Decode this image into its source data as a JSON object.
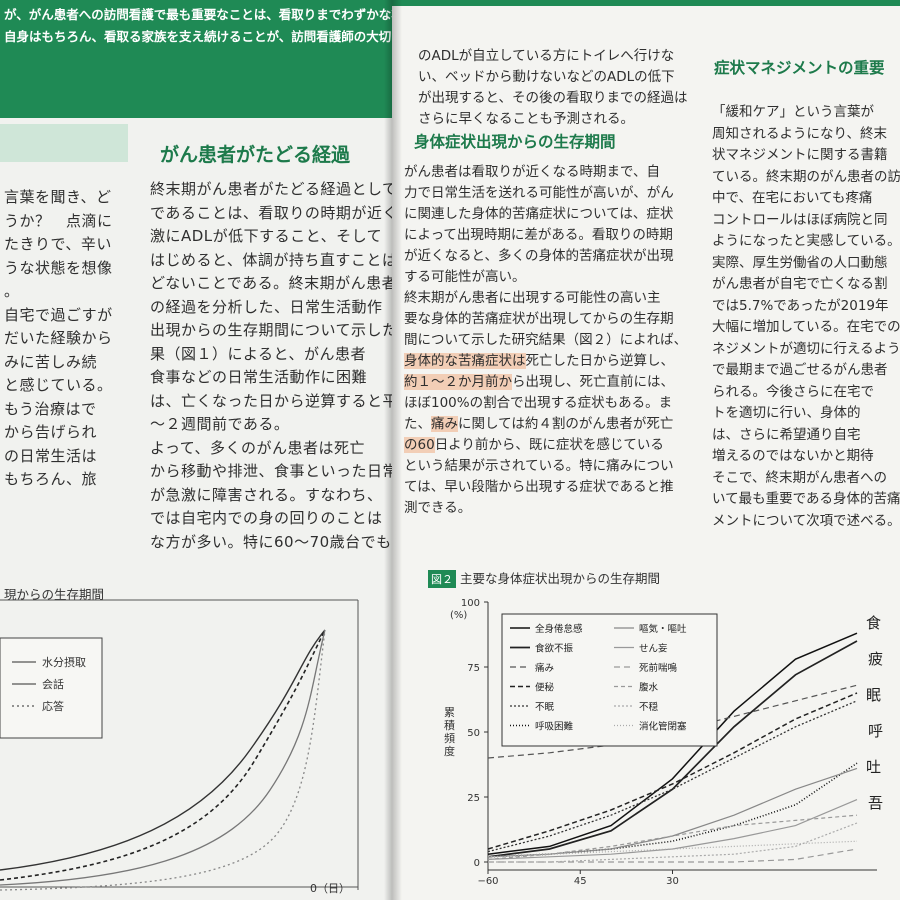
{
  "left_page": {
    "banner_lines": [
      "が、がん患者への訪問看護で最も重要なことは、看取りまでわずかな状況と予測される",
      "自身はもちろん、看取る家族を支え続けることが、訪問看護師の大切な役割",
      "",
      ""
    ],
    "section_title": "がん患者がたどる経過",
    "left_col_lines": [
      "言葉を聞き、ど",
      "うか？　点滴に",
      "たきりで、辛い",
      "うな状態を想像",
      "。",
      "自宅で過ごすが",
      "だいた経験から",
      "みに苦しみ続",
      "と感じている。",
      "もう治療はで",
      "から告げられ",
      "の日常生活は",
      "もちろん、旅"
    ],
    "right_col_lines": [
      "終末期がん患者がたどる経過として特",
      "であることは、看取りの時期が近くなる",
      "激にADLが低下すること、そして",
      "はじめると、体調が持ち直すことは",
      "どないことである。終末期がん患者",
      "の経過を分析した、日常生活動作",
      "出現からの生存期間について示した",
      "果（図１）によると、がん患者",
      "食事などの日常生活動作に困難",
      "は、亡くなった日から逆算すると平均",
      "～２週間前である。",
      "よって、多くのがん患者は死亡",
      "から移動や排泄、食事といった日常",
      "が急激に障害される。すなわち、",
      "では自宅内での身の回りのことは",
      "な方が多い。特に60～70歳台でも"
    ],
    "figure_caption": "現からの生存期間",
    "legend": [
      "水分摂取",
      "会話",
      "応答"
    ],
    "x_axis_end": "0（日）"
  },
  "right_page": {
    "intro_lines": [
      "のADLが自立している方にトイレへ行けな",
      "い、ベッドから動けないなどのADLの低下",
      "が出現すると、その後の看取りまでの経過は",
      "さらに早くなることも予測される。"
    ],
    "section_title": "身体症状出現からの生存期間",
    "body_lines": [
      "がん患者は看取りが近くなる時期まで、自",
      "力で日常生活を送れる可能性が高いが、がん",
      "に関連した身体的苦痛症状については、症状",
      "によって出現時期に差がある。看取りの時期",
      "が近くなると、多くの身体的苦痛症状が出現",
      "する可能性が高い。",
      "終末期がん患者に出現する可能性の高い主",
      "要な身体的苦痛症状が出現してからの生存期",
      "間について示した研究結果（図２）によれば、",
      "身体的な苦痛症状は死亡した日から逆算し、",
      "約１～２か月前から出現し、死亡直前には、",
      "ほぼ100%の割合で出現する症状もある。ま",
      "た、痛みに関しては約４割のがん患者が死亡",
      "の60日より前から、既に症状を感じている",
      "という結果が示されている。特に痛みについ",
      "ては、早い段階から出現する症状であると推",
      "測できる。"
    ],
    "side_title": "症状マネジメントの重要",
    "side_lines": [
      "「緩和ケア」という言葉が",
      "周知されるようになり、終末",
      "状マネジメントに関する書籍",
      "ている。終末期のがん患者の訪",
      "中で、在宅においても疼痛",
      "コントロールはほぼ病院と同",
      "ようになったと実感している。",
      "実際、厚生労働省の人口動態",
      "がん患者が自宅で亡くなる割",
      "では5.7%であったが2019年",
      "大幅に増加している。在宅での",
      "ネジメントが適切に行えるように",
      "で最期まで過ごせるがん患者",
      "られる。今後さらに在宅で",
      "トを適切に行い、身体的",
      "は、さらに希望通り自宅",
      "増えるのではないかと期待",
      "そこで、終末期がん患者への",
      "いて最も重要である身体的苦痛",
      "メントについて次項で述べる。"
    ],
    "figure_label": "図２",
    "figure_caption": "主要な身体症状出現からの生存期間",
    "y_axis_title": "累積頻度",
    "y_unit": "(%)",
    "y_ticks": [
      "100",
      "75",
      "50",
      "25",
      "0"
    ],
    "x_ticks": [
      "−60",
      "45",
      "30"
    ],
    "legend_col1": [
      "全身倦怠感",
      "食欲不振",
      "痛み",
      "便秘",
      "不眠",
      "呼吸困難"
    ],
    "legend_col2": [
      "嘔気・嘔吐",
      "せん妄",
      "死前喘鳴",
      "腹水",
      "不穏",
      "消化管閉塞"
    ],
    "handwritten": [
      "食",
      "疲",
      "眠",
      "呼",
      "吐",
      "吾"
    ]
  },
  "chart_data": {
    "type": "line",
    "title": "主要な身体症状出現からの生存期間",
    "ylabel": "累積頻度",
    "ylim": [
      0,
      100
    ],
    "xlim": [
      -60,
      0
    ],
    "series": [
      {
        "name": "全身倦怠感",
        "x": [
          -60,
          -50,
          -40,
          -30,
          -20,
          -10,
          0
        ],
        "y": [
          3,
          6,
          14,
          32,
          58,
          78,
          88
        ]
      },
      {
        "name": "食欲不振",
        "x": [
          -60,
          -50,
          -40,
          -30,
          -20,
          -10,
          0
        ],
        "y": [
          2,
          5,
          12,
          28,
          52,
          72,
          85
        ]
      },
      {
        "name": "痛み",
        "x": [
          -60,
          -50,
          -40,
          -30,
          -20,
          -10,
          0
        ],
        "y": [
          40,
          42,
          45,
          50,
          56,
          62,
          68
        ]
      },
      {
        "name": "便秘",
        "x": [
          -60,
          -50,
          -40,
          -30,
          -20,
          -10,
          0
        ],
        "y": [
          5,
          12,
          20,
          30,
          42,
          55,
          65
        ]
      },
      {
        "name": "不眠",
        "x": [
          -60,
          -50,
          -40,
          -30,
          -20,
          -10,
          0
        ],
        "y": [
          4,
          10,
          18,
          28,
          40,
          52,
          62
        ]
      },
      {
        "name": "呼吸困難",
        "x": [
          -60,
          -50,
          -40,
          -30,
          -20,
          -10,
          0
        ],
        "y": [
          2,
          3,
          5,
          8,
          14,
          22,
          38
        ]
      },
      {
        "name": "嘔気・嘔吐",
        "x": [
          -60,
          -50,
          -40,
          -30,
          -20,
          -10,
          0
        ],
        "y": [
          2,
          3,
          5,
          10,
          18,
          28,
          36
        ]
      },
      {
        "name": "せん妄",
        "x": [
          -60,
          -50,
          -40,
          -30,
          -20,
          -10,
          0
        ],
        "y": [
          1,
          2,
          3,
          5,
          9,
          14,
          24
        ]
      },
      {
        "name": "死前喘鳴",
        "x": [
          -60,
          -50,
          -40,
          -30,
          -20,
          -10,
          0
        ],
        "y": [
          0,
          0,
          0,
          0,
          0,
          1,
          5
        ]
      },
      {
        "name": "腹水",
        "x": [
          -60,
          -50,
          -40,
          -30,
          -20,
          -10,
          0
        ],
        "y": [
          1,
          3,
          6,
          10,
          14,
          16,
          18
        ]
      },
      {
        "name": "不穏",
        "x": [
          -60,
          -50,
          -40,
          -30,
          -20,
          -10,
          0
        ],
        "y": [
          0,
          0,
          1,
          2,
          3,
          6,
          15
        ]
      },
      {
        "name": "消化管閉塞",
        "x": [
          -60,
          -50,
          -40,
          -30,
          -20,
          -10,
          0
        ],
        "y": [
          2,
          3,
          4,
          5,
          6,
          7,
          8
        ]
      }
    ]
  }
}
